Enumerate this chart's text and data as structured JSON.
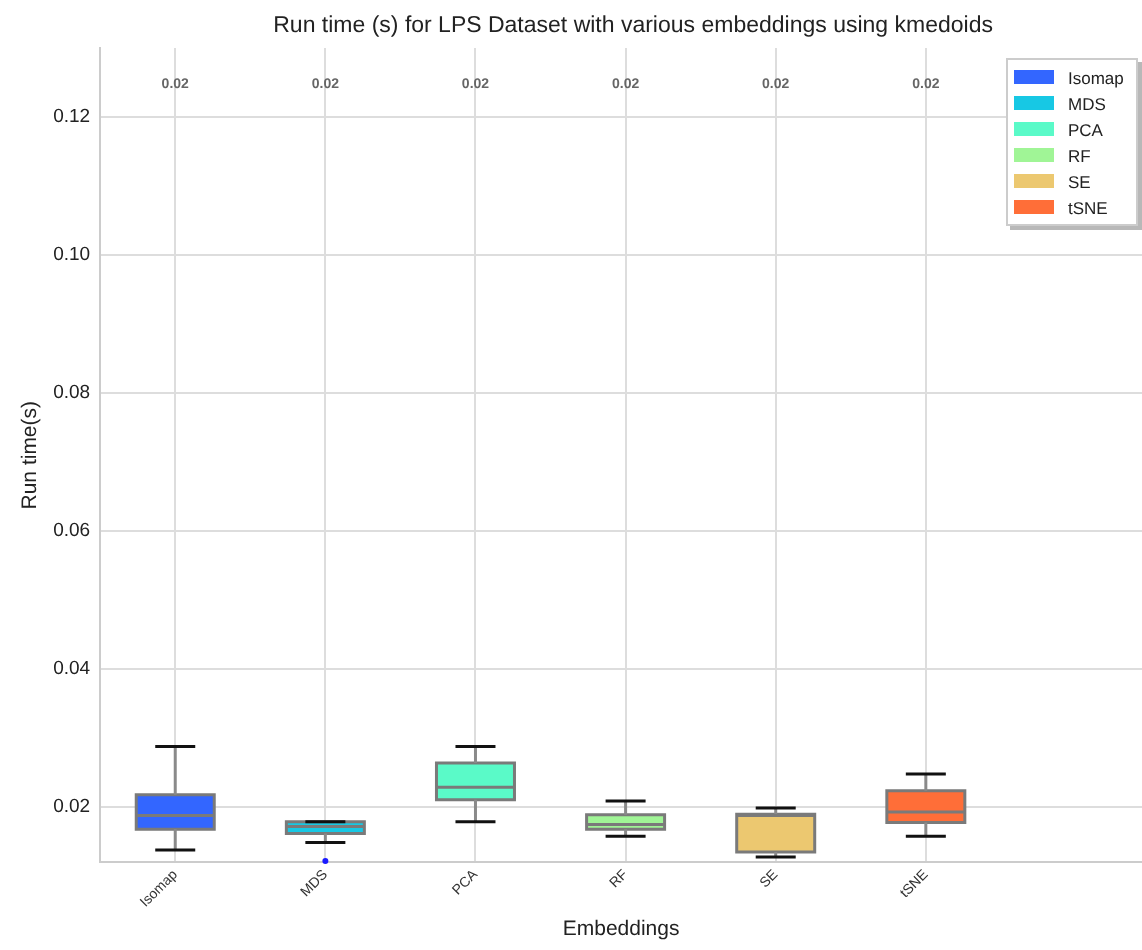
{
  "chart_data": {
    "type": "box",
    "title": "Run time (s) for LPS Dataset with various embeddings using kmedoids",
    "xlabel": "Embeddings",
    "ylabel": "Run time(s)",
    "categories": [
      "Isomap",
      "MDS",
      "PCA",
      "RF",
      "SE",
      "tSNE"
    ],
    "series": [
      {
        "name": "Isomap",
        "color": "#3366ff",
        "boxes": [
          {
            "low": 0.0138,
            "q1": 0.0168,
            "median": 0.0188,
            "q3": 0.0218,
            "high": 0.0288
          },
          null,
          null,
          null,
          null,
          null
        ]
      },
      {
        "name": "MDS",
        "color": "#17c8e4",
        "boxes": [
          null,
          {
            "low": 0.0149,
            "q1": 0.0162,
            "median": 0.0172,
            "q3": 0.0179,
            "high": 0.0179,
            "outliers": [
              0.0122
            ]
          },
          null,
          null,
          null,
          null
        ]
      },
      {
        "name": "PCA",
        "color": "#5afac8",
        "boxes": [
          null,
          null,
          {
            "low": 0.0179,
            "q1": 0.0211,
            "median": 0.0229,
            "q3": 0.0264,
            "high": 0.0288
          },
          null,
          null,
          null
        ]
      },
      {
        "name": "RF",
        "color": "#a0f596",
        "boxes": [
          null,
          null,
          null,
          {
            "low": 0.0158,
            "q1": 0.0168,
            "median": 0.0175,
            "q3": 0.0189,
            "high": 0.0209
          },
          null,
          null
        ]
      },
      {
        "name": "SE",
        "color": "#ecc870",
        "boxes": [
          null,
          null,
          null,
          null,
          {
            "low": 0.0128,
            "q1": 0.0135,
            "median": 0.0188,
            "q3": 0.019,
            "high": 0.0199
          },
          null
        ]
      },
      {
        "name": "tSNE",
        "color": "#ff6e38",
        "boxes": [
          null,
          null,
          null,
          null,
          null,
          {
            "low": 0.0158,
            "q1": 0.0178,
            "median": 0.0193,
            "q3": 0.0224,
            "high": 0.0248
          }
        ]
      }
    ],
    "ylim": [
      0.012,
      0.13
    ],
    "yticks": [
      0.02,
      0.04,
      0.06,
      0.08,
      {
        "value": 0.1,
        "label": "0.10"
      },
      0.12
    ],
    "annotations": [
      "0.02",
      "0.02",
      "0.02",
      "0.02",
      "0.02",
      "0.02"
    ],
    "grid": true,
    "legend": "top right"
  }
}
